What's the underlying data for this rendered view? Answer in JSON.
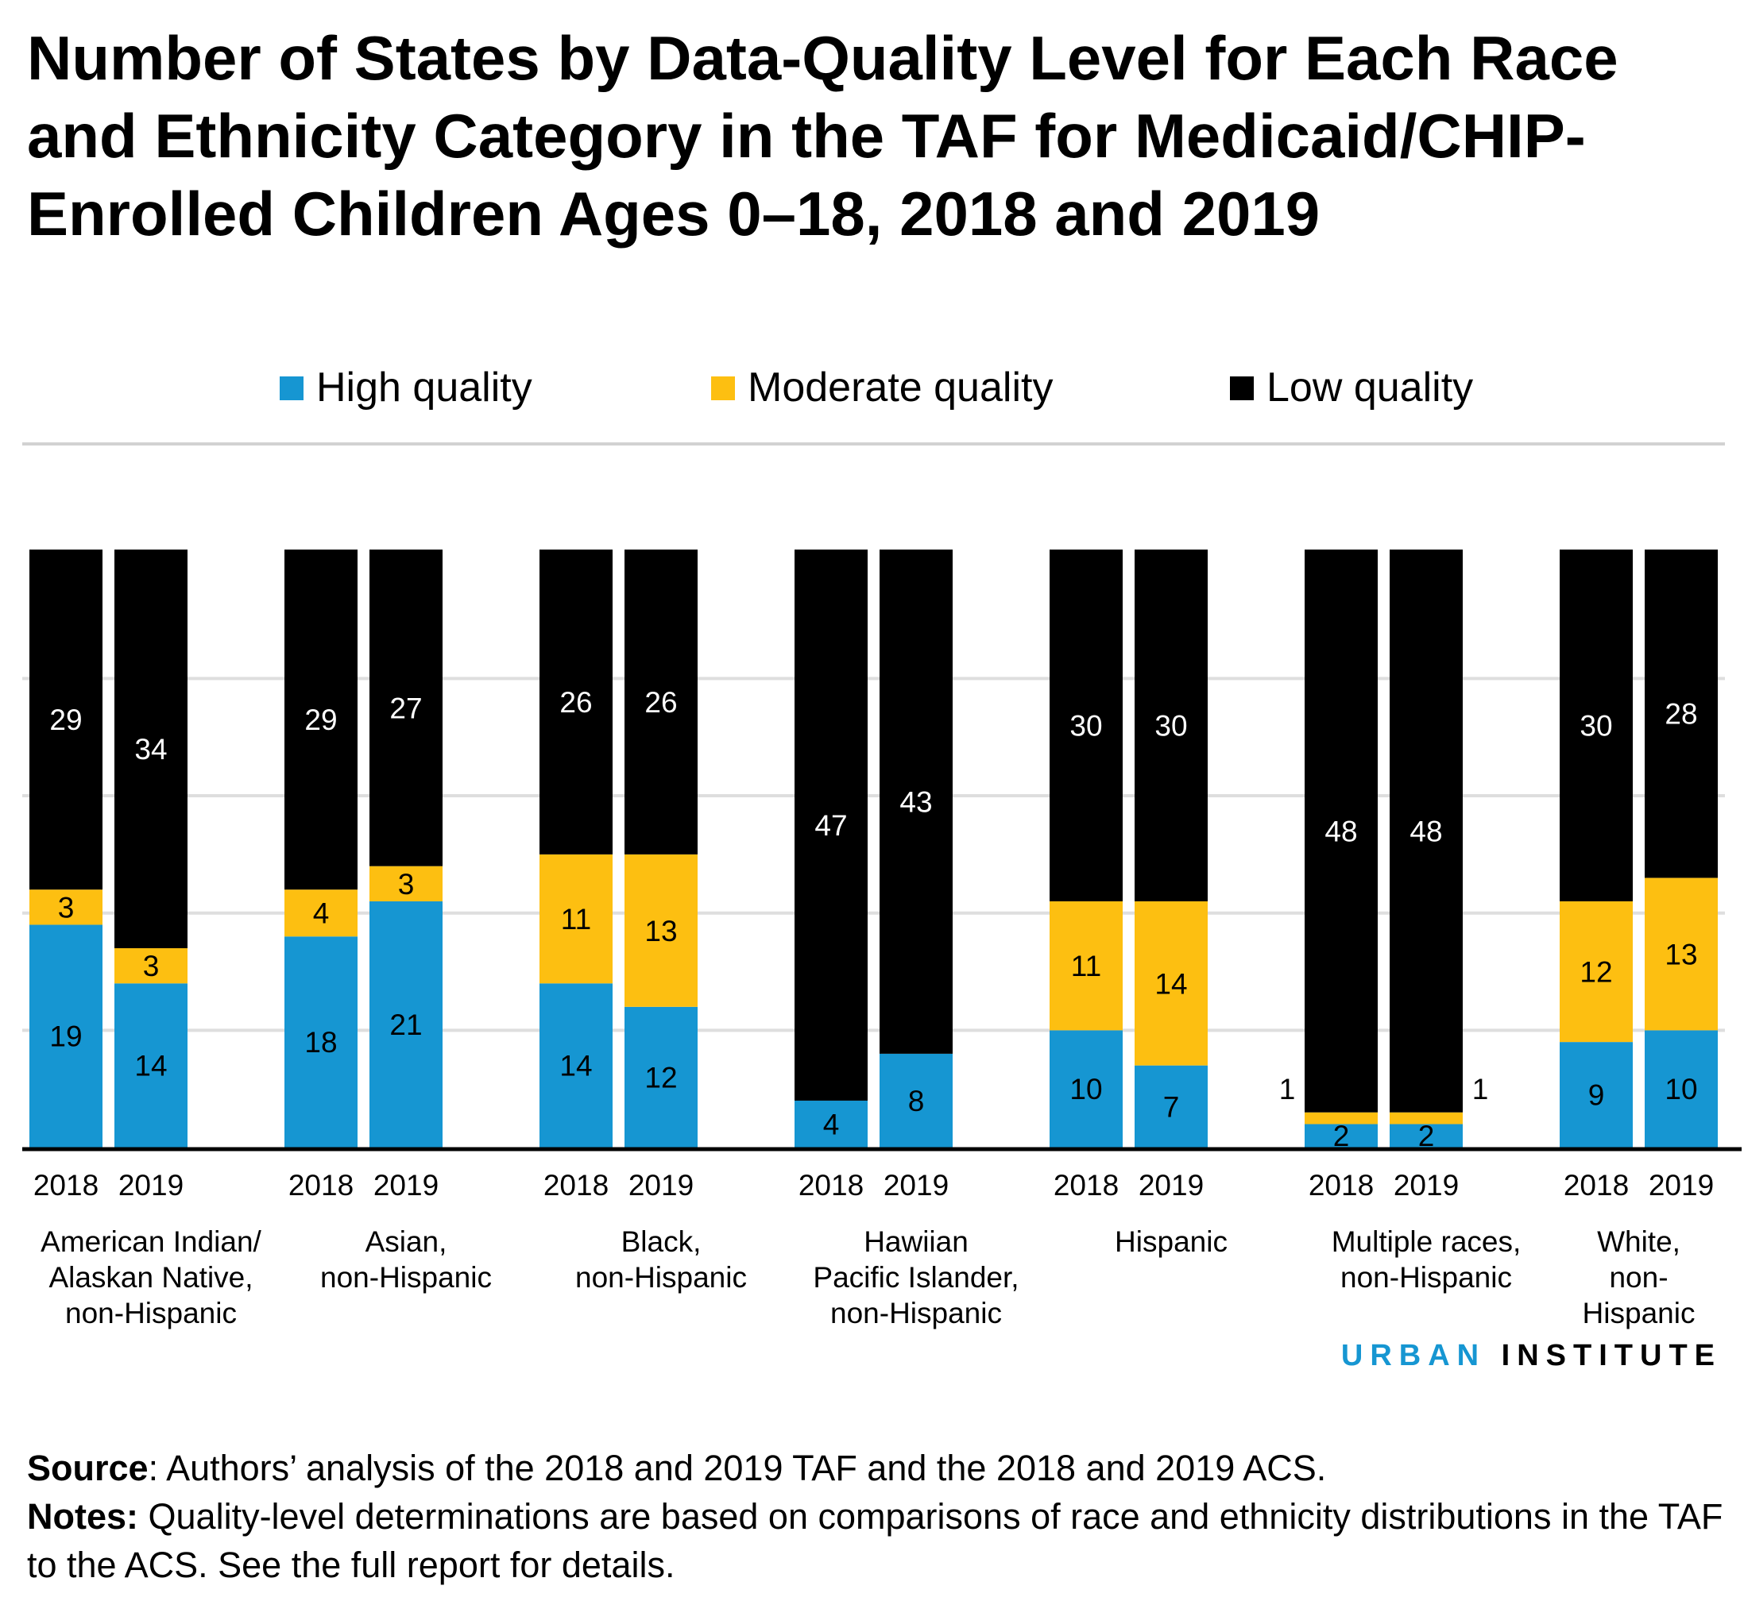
{
  "title": "Number of States by Data-Quality Level for Each Race and Ethnicity Category in the TAF for Medicaid/CHIP-Enrolled Children Ages 0–18, 2018 and 2019",
  "logo": {
    "part1": "URBAN",
    "part2": "INSTITUTE"
  },
  "footer": {
    "source_label": "Source",
    "source_text": ": Authors’ analysis of the 2018 and 2019 TAF and the 2018 and 2019 ACS.",
    "notes_label": "Notes:",
    "notes_text": " Quality-level determinations are based on comparisons of race and ethnicity distributions in the TAF to the ACS. See the full report for details."
  },
  "chart_data": {
    "type": "bar",
    "stacked": true,
    "title": "Number of States by Data-Quality Level for Each Race and Ethnicity Category in the TAF for Medicaid/CHIP-Enrolled Children Ages 0–18, 2018 and 2019",
    "ylim": [
      0,
      51
    ],
    "grid": true,
    "legend_placement": "top",
    "years": [
      "2018",
      "2019"
    ],
    "groups": [
      {
        "label": [
          "American Indian/",
          "Alaskan Native,",
          "non-Hispanic"
        ]
      },
      {
        "label": [
          "Asian,",
          "non-Hispanic"
        ]
      },
      {
        "label": [
          "Black,",
          "non-Hispanic"
        ]
      },
      {
        "label": [
          "Hawiian",
          "Pacific Islander,",
          "non-Hispanic"
        ]
      },
      {
        "label": [
          "Hispanic"
        ]
      },
      {
        "label": [
          "Multiple races,",
          "non-Hispanic"
        ]
      },
      {
        "label": [
          "White,",
          "non-",
          "Hispanic"
        ]
      }
    ],
    "series": [
      {
        "name": "High quality",
        "color": "#1696d2",
        "values": [
          [
            19,
            14
          ],
          [
            18,
            21
          ],
          [
            14,
            12
          ],
          [
            4,
            8
          ],
          [
            10,
            7
          ],
          [
            2,
            2
          ],
          [
            9,
            10
          ]
        ]
      },
      {
        "name": "Moderate quality",
        "color": "#fdbf11",
        "values": [
          [
            3,
            3
          ],
          [
            4,
            3
          ],
          [
            11,
            13
          ],
          [
            0,
            0
          ],
          [
            11,
            14
          ],
          [
            1,
            1
          ],
          [
            12,
            13
          ]
        ]
      },
      {
        "name": "Low quality",
        "color": "#000000",
        "values": [
          [
            29,
            34
          ],
          [
            29,
            27
          ],
          [
            26,
            26
          ],
          [
            47,
            43
          ],
          [
            30,
            30
          ],
          [
            48,
            48
          ],
          [
            30,
            28
          ]
        ]
      }
    ]
  }
}
